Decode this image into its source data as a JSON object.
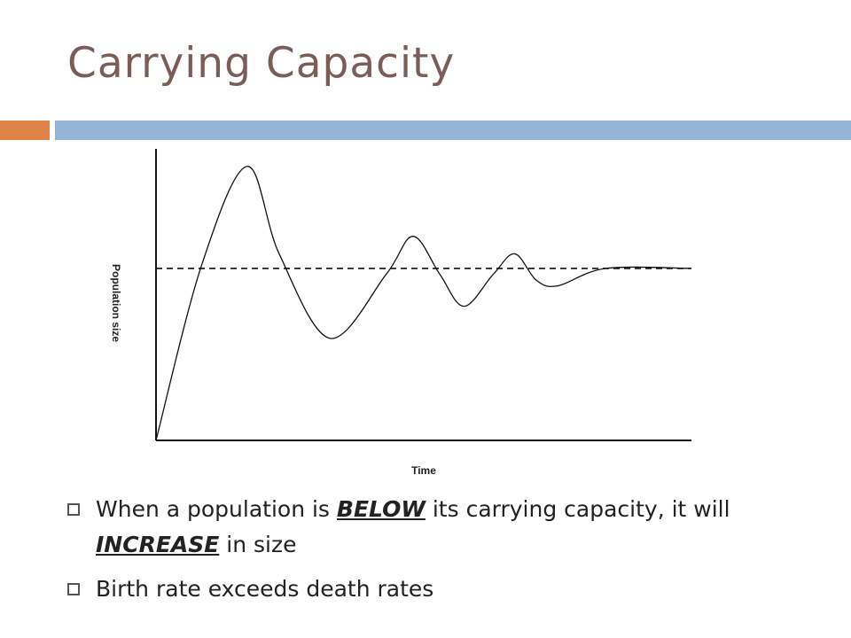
{
  "slide": {
    "title": "Carrying Capacity",
    "accent_colors": {
      "left": "#dd8449",
      "right": "#95b3d7"
    }
  },
  "bullets": [
    {
      "segments": [
        {
          "text": "When a population is ",
          "emphasis": false
        },
        {
          "text": "BELOW",
          "emphasis": true
        },
        {
          "text": " its carrying capacity, it will ",
          "emphasis": false
        },
        {
          "text": "INCREASE",
          "emphasis": true
        },
        {
          "text": " in size",
          "emphasis": false
        }
      ]
    },
    {
      "segments": [
        {
          "text": "Birth rate exceeds death rates",
          "emphasis": false
        }
      ]
    }
  ],
  "chart_data": {
    "type": "line",
    "xlabel": "Time",
    "ylabel": "Population size",
    "xlim": [
      0,
      100
    ],
    "ylim": [
      0,
      100
    ],
    "grid": false,
    "ticks": false,
    "carrying_capacity": {
      "value": 59,
      "style": "dashed"
    },
    "series": [
      {
        "values": [
          {
            "x": 0,
            "y": 0
          },
          {
            "x": 8.5,
            "y": 60
          },
          {
            "x": 17,
            "y": 94
          },
          {
            "x": 23,
            "y": 64
          },
          {
            "x": 32.5,
            "y": 35
          },
          {
            "x": 43,
            "y": 57
          },
          {
            "x": 48,
            "y": 70
          },
          {
            "x": 53,
            "y": 57
          },
          {
            "x": 57.5,
            "y": 46
          },
          {
            "x": 63,
            "y": 57
          },
          {
            "x": 67,
            "y": 64
          },
          {
            "x": 71,
            "y": 55
          },
          {
            "x": 75,
            "y": 53
          },
          {
            "x": 84,
            "y": 59
          },
          {
            "x": 100,
            "y": 59
          }
        ]
      }
    ]
  }
}
